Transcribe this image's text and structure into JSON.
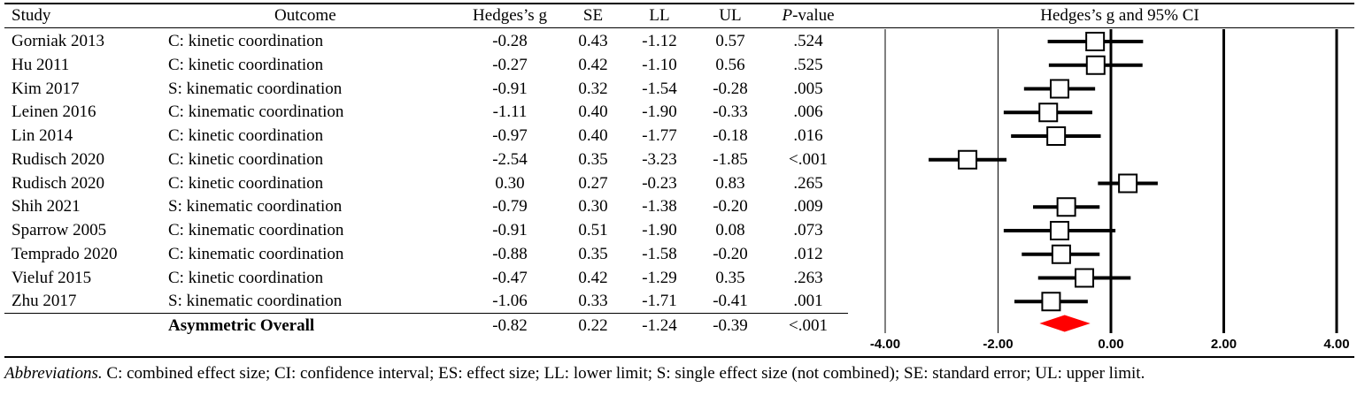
{
  "headers": {
    "study": "Study",
    "outcome": "Outcome",
    "g": "Hedges’s g",
    "se": "SE",
    "ll": "LL",
    "ul": "UL",
    "p_italic": "P",
    "p_rest": "-value",
    "plot": "Hedges’s g and 95% CI"
  },
  "rows": [
    {
      "study": "Gorniak 2013",
      "outcome": "C: kinetic coordination",
      "g": "-0.28",
      "se": "0.43",
      "ll": "-1.12",
      "ul": "0.57",
      "p": ".524"
    },
    {
      "study": "Hu 2011",
      "outcome": "C: kinetic coordination",
      "g": "-0.27",
      "se": "0.42",
      "ll": "-1.10",
      "ul": "0.56",
      "p": ".525"
    },
    {
      "study": "Kim 2017",
      "outcome": "S: kinematic coordination",
      "g": "-0.91",
      "se": "0.32",
      "ll": "-1.54",
      "ul": "-0.28",
      "p": ".005"
    },
    {
      "study": "Leinen 2016",
      "outcome": "C: kinematic coordination",
      "g": "-1.11",
      "se": "0.40",
      "ll": "-1.90",
      "ul": "-0.33",
      "p": ".006"
    },
    {
      "study": "Lin 2014",
      "outcome": "C: kinetic coordination",
      "g": "-0.97",
      "se": "0.40",
      "ll": "-1.77",
      "ul": "-0.18",
      "p": ".016"
    },
    {
      "study": "Rudisch 2020",
      "outcome": "C: kinetic coordination",
      "g": "-2.54",
      "se": "0.35",
      "ll": "-3.23",
      "ul": "-1.85",
      "p": "<.001"
    },
    {
      "study": "Rudisch 2020",
      "outcome": "C: kinetic coordination",
      "g": "0.30",
      "se": "0.27",
      "ll": "-0.23",
      "ul": "0.83",
      "p": ".265"
    },
    {
      "study": "Shih 2021",
      "outcome": "S: kinematic coordination",
      "g": "-0.79",
      "se": "0.30",
      "ll": "-1.38",
      "ul": "-0.20",
      "p": ".009"
    },
    {
      "study": "Sparrow 2005",
      "outcome": "C: kinematic coordination",
      "g": "-0.91",
      "se": "0.51",
      "ll": "-1.90",
      "ul": "0.08",
      "p": ".073"
    },
    {
      "study": "Temprado 2020",
      "outcome": "C: kinematic coordination",
      "g": "-0.88",
      "se": "0.35",
      "ll": "-1.58",
      "ul": "-0.20",
      "p": ".012"
    },
    {
      "study": "Vieluf 2015",
      "outcome": "C: kinetic coordination",
      "g": "-0.47",
      "se": "0.42",
      "ll": "-1.29",
      "ul": "0.35",
      "p": ".263"
    },
    {
      "study": "Zhu 2017",
      "outcome": "S: kinematic coordination",
      "g": "-1.06",
      "se": "0.33",
      "ll": "-1.71",
      "ul": "-0.41",
      "p": ".001"
    }
  ],
  "overall": {
    "label": "Asymmetric Overall",
    "g": "-0.82",
    "se": "0.22",
    "ll": "-1.24",
    "ul": "-0.39",
    "p": "<.001"
  },
  "footnote": {
    "lead": "Abbreviations.",
    "text": " C: combined effect size; CI: confidence interval; ES: effect size; LL: lower limit; S: single effect size (not combined); SE: standard error; UL: upper limit."
  },
  "chart_data": {
    "type": "forest",
    "title": "Hedges’s g and 95% CI",
    "xlim": [
      -4,
      4
    ],
    "ticks": [
      -4,
      -2,
      0,
      2,
      4
    ],
    "tick_labels": [
      "-4.00",
      "-2.00",
      "0.00",
      "2.00",
      "4.00"
    ],
    "points": [
      {
        "g": -0.28,
        "ll": -1.12,
        "ul": 0.57
      },
      {
        "g": -0.27,
        "ll": -1.1,
        "ul": 0.56
      },
      {
        "g": -0.91,
        "ll": -1.54,
        "ul": -0.28
      },
      {
        "g": -1.11,
        "ll": -1.9,
        "ul": -0.33
      },
      {
        "g": -0.97,
        "ll": -1.77,
        "ul": -0.18
      },
      {
        "g": -2.54,
        "ll": -3.23,
        "ul": -1.85
      },
      {
        "g": 0.3,
        "ll": -0.23,
        "ul": 0.83
      },
      {
        "g": -0.79,
        "ll": -1.38,
        "ul": -0.2
      },
      {
        "g": -0.91,
        "ll": -1.9,
        "ul": 0.08
      },
      {
        "g": -0.88,
        "ll": -1.58,
        "ul": -0.2
      },
      {
        "g": -0.47,
        "ll": -1.29,
        "ul": 0.35
      },
      {
        "g": -1.06,
        "ll": -1.71,
        "ul": -0.41
      }
    ],
    "overall": {
      "g": -0.82,
      "ll": -1.24,
      "ul": -0.39
    },
    "overall_color": "#ff0000"
  }
}
